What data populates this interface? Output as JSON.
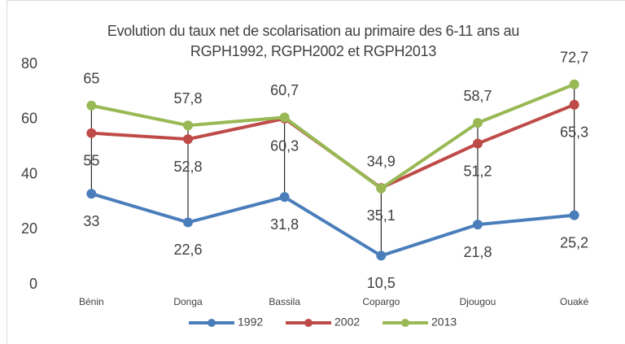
{
  "chart_data": {
    "type": "line",
    "title": "Evolution du taux net de scolarisation au primaire des 6-11 ans au RGPH1992, RGPH2002 et RGPH2013",
    "categories": [
      "Bénin",
      "Donga",
      "Bassila",
      "Copargo",
      "Djougou",
      "Ouaké"
    ],
    "series": [
      {
        "name": "1992",
        "color": "#4a7ebb",
        "values": [
          33,
          22.6,
          31.8,
          10.5,
          21.8,
          25.2
        ],
        "value_labels": [
          "33",
          "22,6",
          "31,8",
          "10,5",
          "21,8",
          "25,2"
        ]
      },
      {
        "name": "2002",
        "color": "#be4b48",
        "values": [
          55,
          52.8,
          60.3,
          35.1,
          51.2,
          65.3
        ],
        "value_labels": [
          "55",
          "52,8",
          "60,3",
          "35,1",
          "51,2",
          "65,3"
        ]
      },
      {
        "name": "2013",
        "color": "#98b954",
        "values": [
          65,
          57.8,
          60.7,
          34.9,
          58.7,
          72.7
        ],
        "value_labels": [
          "65",
          "57,8",
          "60,7",
          "34,9",
          "58,7",
          "72,7"
        ]
      }
    ],
    "ylim": [
      0,
      80
    ],
    "yticks": [
      0,
      20,
      40,
      60,
      80
    ],
    "grid": false,
    "high_low_lines": true,
    "legend": "bottom"
  }
}
